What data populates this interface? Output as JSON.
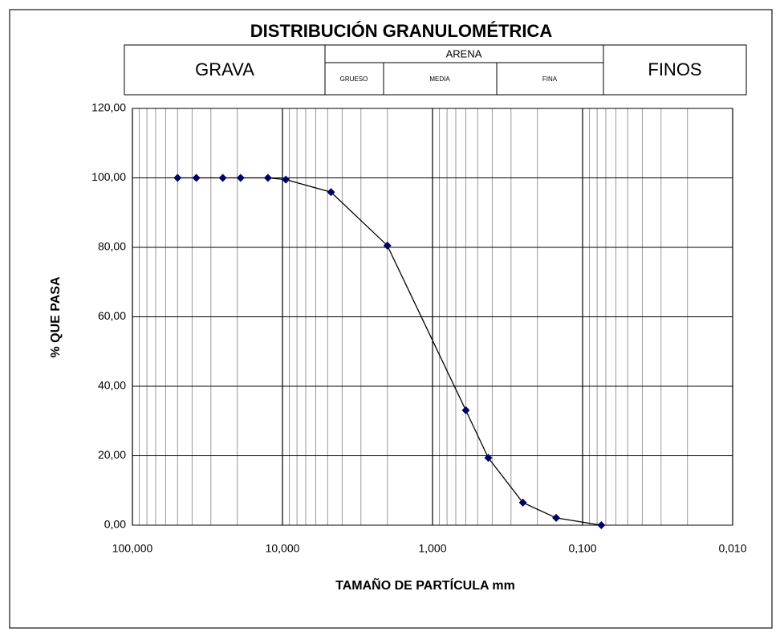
{
  "chart_data": {
    "type": "line",
    "title": "DISTRIBUCIÓN GRANULOMÉTRICA",
    "zone_labels": {
      "grava": "GRAVA",
      "arena": "ARENA",
      "grueso": "GRUESO",
      "media": "MEDIA",
      "fina": "FINA",
      "finos": "FINOS"
    },
    "xlabel": "TAMAÑO DE PARTÍCULA mm",
    "ylabel": "% QUE PASA",
    "xscale": "log",
    "xlim": [
      100,
      0.01
    ],
    "xticks": [
      {
        "value": 100,
        "label": "100,000"
      },
      {
        "value": 10,
        "label": "10,000"
      },
      {
        "value": 1,
        "label": "1,000"
      },
      {
        "value": 0.1,
        "label": "0,100"
      },
      {
        "value": 0.01,
        "label": "0,010"
      }
    ],
    "ylim": [
      0,
      120
    ],
    "yticks": [
      {
        "value": 0,
        "label": "0,00"
      },
      {
        "value": 20,
        "label": "20,00"
      },
      {
        "value": 40,
        "label": "40,00"
      },
      {
        "value": 60,
        "label": "60,00"
      },
      {
        "value": 80,
        "label": "80,00"
      },
      {
        "value": 100,
        "label": "100,00"
      },
      {
        "value": 120,
        "label": "120,00"
      }
    ],
    "grid": true,
    "minor_grid": true,
    "x": [
      50,
      37.5,
      25,
      19,
      12.5,
      9.5,
      4.75,
      2,
      0.6,
      0.425,
      0.25,
      0.15,
      0.075
    ],
    "series": [
      {
        "color": "#000066",
        "values": [
          100,
          100,
          100,
          100,
          100,
          99.5,
          95.9,
          80.5,
          33.1,
          19.4,
          6.5,
          2.1,
          0
        ]
      }
    ]
  }
}
